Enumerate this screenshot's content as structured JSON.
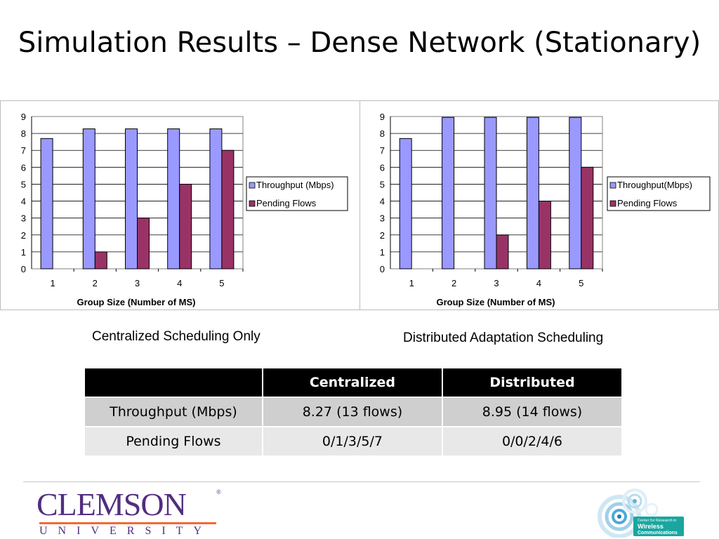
{
  "slide": {
    "title": "Simulation Results – Dense Network (Stationary)"
  },
  "captions": {
    "left": "Centralized Scheduling Only",
    "right": "Distributed Adaptation Scheduling"
  },
  "chart_data": [
    {
      "type": "bar",
      "categories": [
        "1",
        "2",
        "3",
        "4",
        "5"
      ],
      "series": [
        {
          "name": "Throughput (Mbps)",
          "values": [
            7.7,
            8.27,
            8.27,
            8.27,
            8.27
          ],
          "color": "#9999ff"
        },
        {
          "name": "Pending Flows",
          "values": [
            0,
            1,
            3,
            5,
            7
          ],
          "color": "#993366"
        }
      ],
      "xlabel": "Group Size (Number of MS)",
      "ylabel": "",
      "ylim": [
        0,
        9
      ],
      "yticks": [
        "0",
        "1",
        "2",
        "3",
        "4",
        "5",
        "6",
        "7",
        "8",
        "9"
      ],
      "grid": true,
      "legend": "right"
    },
    {
      "type": "bar",
      "categories": [
        "1",
        "2",
        "3",
        "4",
        "5"
      ],
      "series": [
        {
          "name": "Throughput(Mbps)",
          "values": [
            7.7,
            8.95,
            8.95,
            8.95,
            8.95
          ],
          "color": "#9999ff"
        },
        {
          "name": "Pending Flows",
          "values": [
            0,
            0,
            2,
            4,
            6
          ],
          "color": "#993366"
        }
      ],
      "xlabel": "Group Size (Number of MS)",
      "ylabel": "",
      "ylim": [
        0,
        9
      ],
      "yticks": [
        "0",
        "1",
        "2",
        "3",
        "4",
        "5",
        "6",
        "7",
        "8",
        "9"
      ],
      "grid": true,
      "legend": "right"
    }
  ],
  "table": {
    "headers": [
      "",
      "Centralized",
      "Distributed"
    ],
    "rows": [
      [
        "Throughput (Mbps)",
        "8.27 (13 flows)",
        "8.95 (14 flows)"
      ],
      [
        "Pending Flows",
        "0/1/3/5/7",
        "0/0/2/4/6"
      ]
    ]
  },
  "logos": {
    "left": {
      "word": "CLEMSON",
      "sub": "UNIVERSITY",
      "mark": "®",
      "color": "#522d80",
      "accent": "#f66733"
    },
    "right": {
      "lines": [
        "Center for Research in",
        "Wireless",
        "Communications"
      ],
      "color": "#1aa6a0"
    }
  }
}
